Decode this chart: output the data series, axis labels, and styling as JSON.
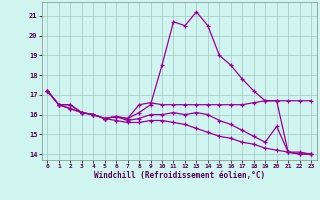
{
  "title": "",
  "xlabel": "Windchill (Refroidissement éolien,°C)",
  "xlim": [
    -0.5,
    23.5
  ],
  "ylim": [
    13.7,
    21.7
  ],
  "yticks": [
    14,
    15,
    16,
    17,
    18,
    19,
    20,
    21
  ],
  "xticks": [
    0,
    1,
    2,
    3,
    4,
    5,
    6,
    7,
    8,
    9,
    10,
    11,
    12,
    13,
    14,
    15,
    16,
    17,
    18,
    19,
    20,
    21,
    22,
    23
  ],
  "bg_color": "#d0f5f0",
  "grid_color": "#a0c8c0",
  "line_color": "#990099",
  "line1_y": [
    17.2,
    16.5,
    16.5,
    16.1,
    16.0,
    15.8,
    15.9,
    15.8,
    16.1,
    16.5,
    18.5,
    20.7,
    20.5,
    21.2,
    20.5,
    19.0,
    18.5,
    17.8,
    17.2,
    16.7,
    16.7,
    14.1,
    14.1,
    14.0
  ],
  "line2_y": [
    17.2,
    16.5,
    16.5,
    16.1,
    16.0,
    15.8,
    15.9,
    15.8,
    16.5,
    16.6,
    16.5,
    16.5,
    16.5,
    16.5,
    16.5,
    16.5,
    16.5,
    16.5,
    16.6,
    16.7,
    16.7,
    16.7,
    16.7,
    16.7
  ],
  "line3_y": [
    17.2,
    16.5,
    16.3,
    16.1,
    16.0,
    15.8,
    15.9,
    15.7,
    15.8,
    16.0,
    16.0,
    16.1,
    16.0,
    16.1,
    16.0,
    15.7,
    15.5,
    15.2,
    14.9,
    14.6,
    15.4,
    14.1,
    14.0,
    14.0
  ],
  "line4_y": [
    17.2,
    16.5,
    16.3,
    16.1,
    16.0,
    15.8,
    15.7,
    15.6,
    15.6,
    15.7,
    15.7,
    15.6,
    15.5,
    15.3,
    15.1,
    14.9,
    14.8,
    14.6,
    14.5,
    14.3,
    14.2,
    14.1,
    14.0,
    14.0
  ]
}
